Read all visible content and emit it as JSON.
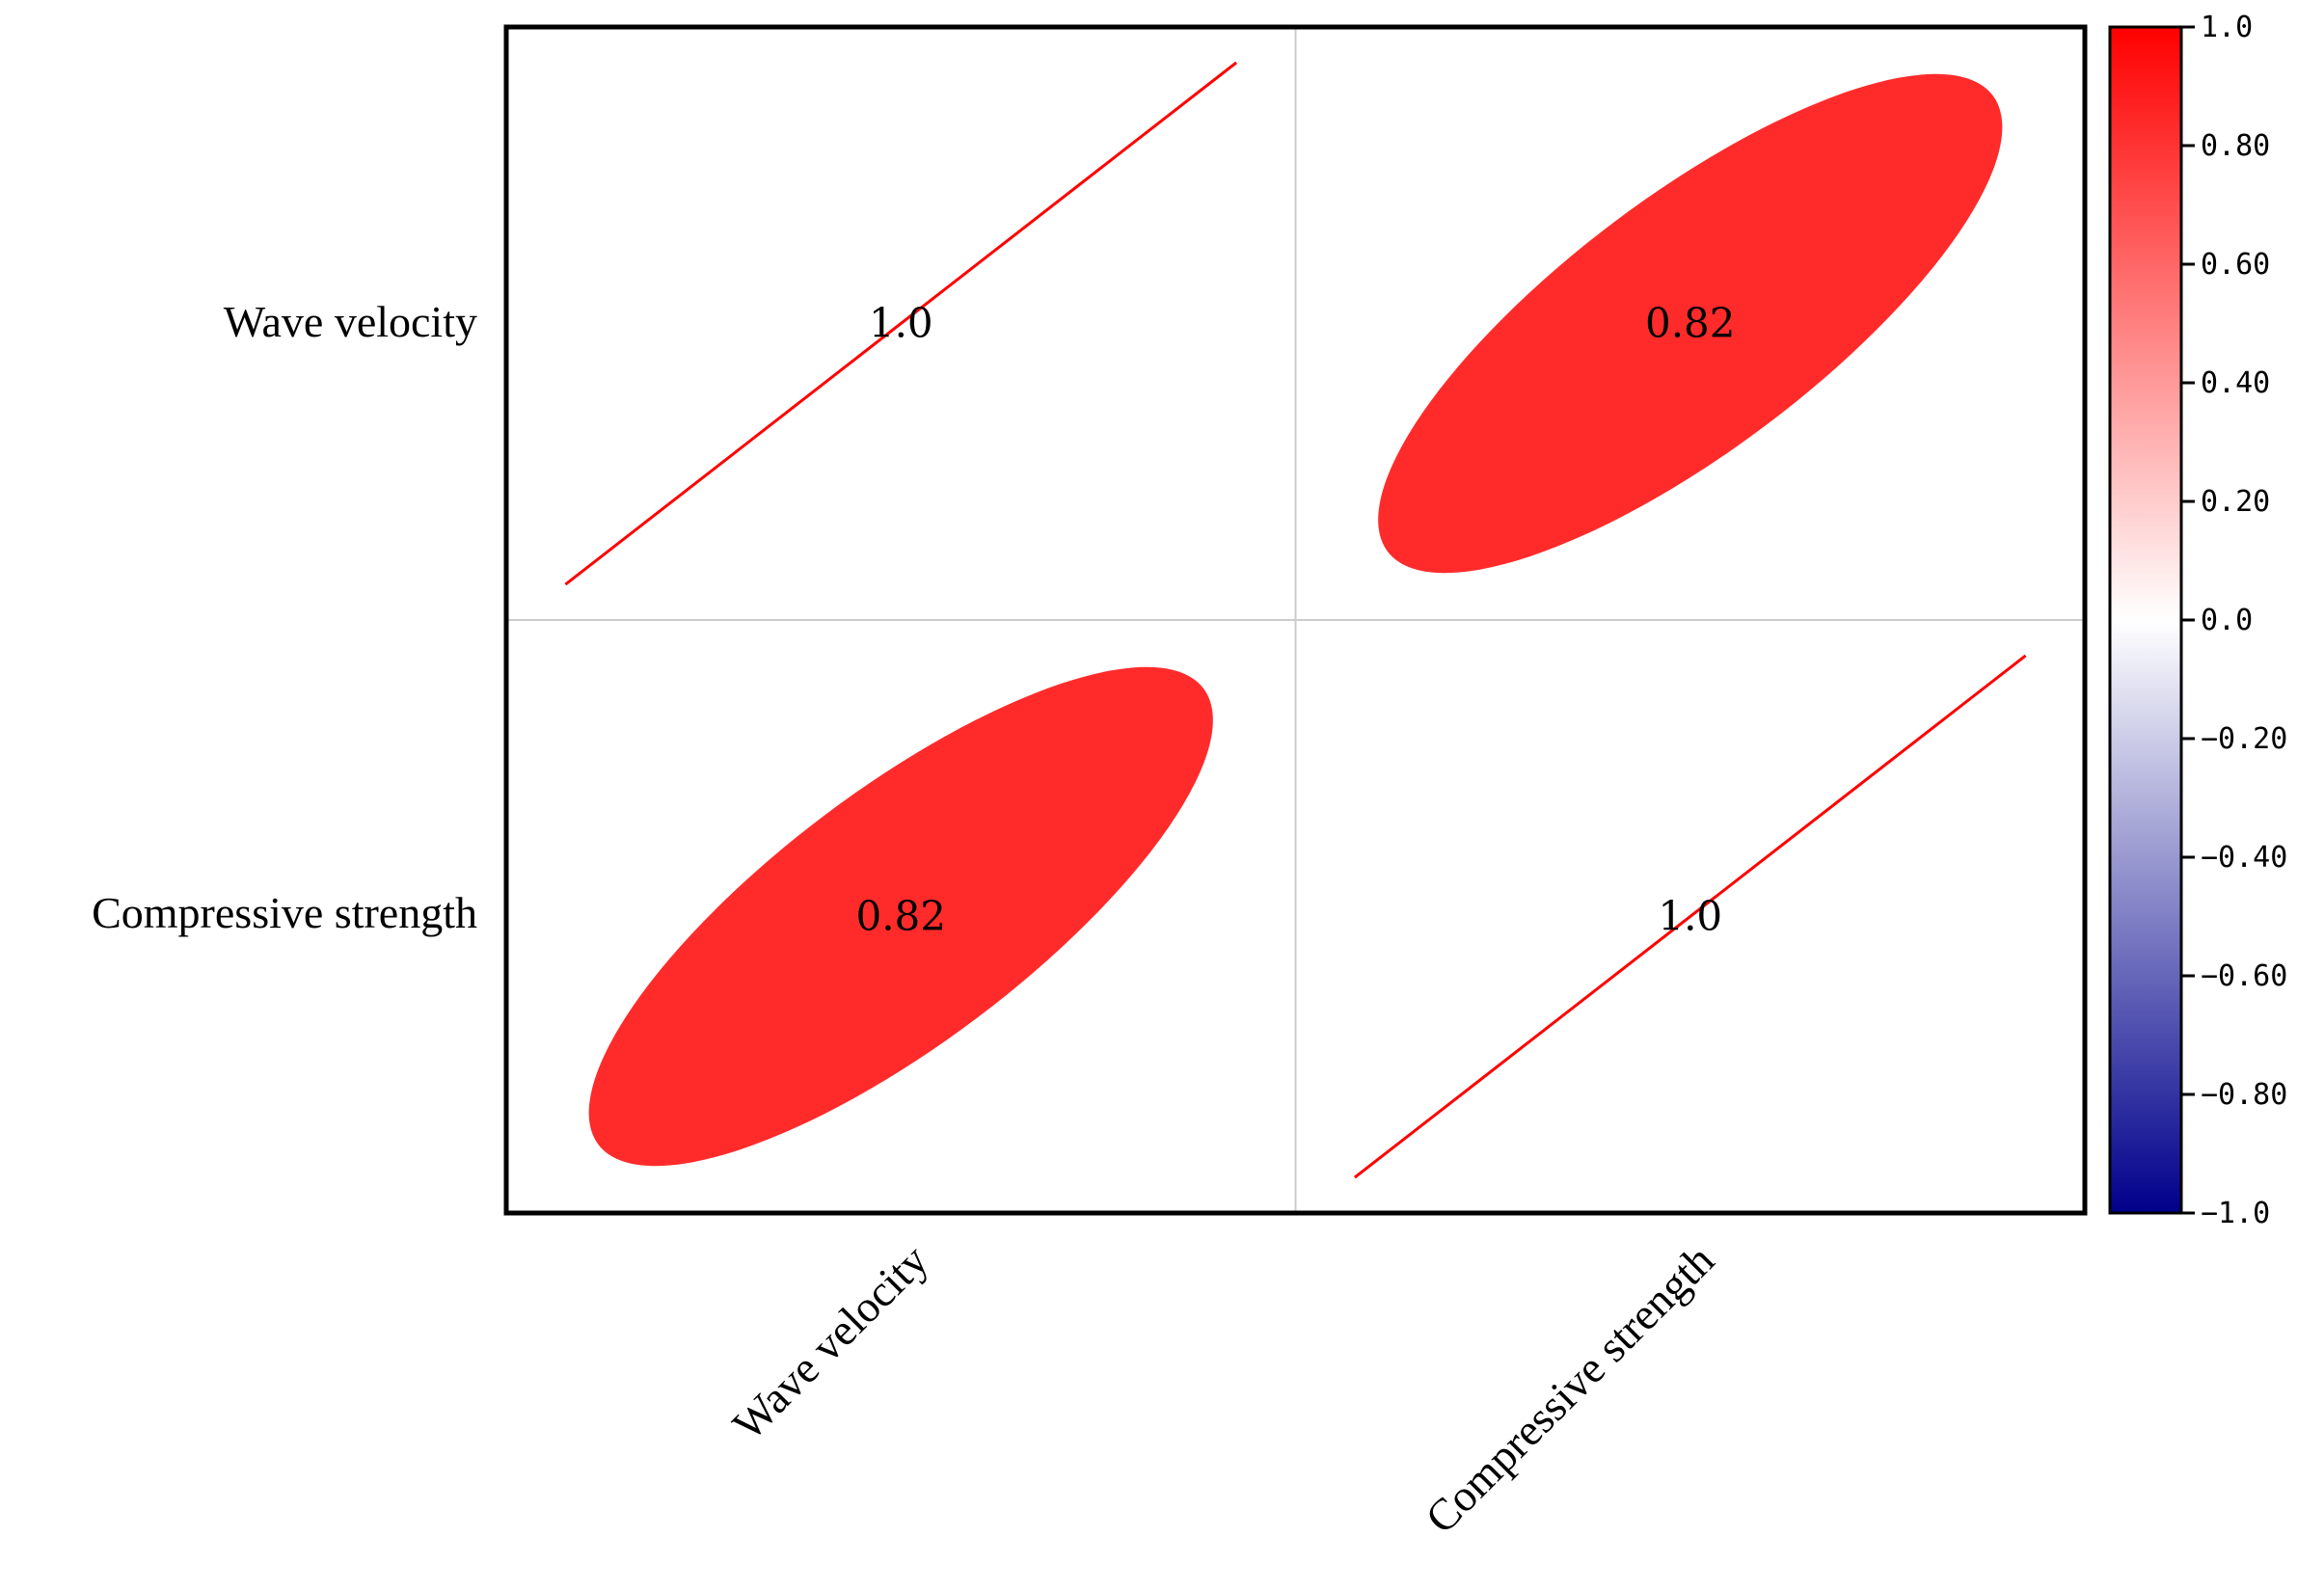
{
  "chart_data": {
    "type": "heatmap",
    "style": "correlation-ellipse",
    "variables": [
      "Wave velocity",
      "Compressive strength"
    ],
    "row_labels": [
      "Wave velocity",
      "Compressive strength"
    ],
    "col_labels": [
      "Wave velocity",
      "Compressive strength"
    ],
    "matrix": [
      [
        1.0,
        0.82
      ],
      [
        0.82,
        1.0
      ]
    ],
    "cell_labels": [
      [
        "1.0",
        "0.82"
      ],
      [
        "0.82",
        "1.0"
      ]
    ],
    "colorbar": {
      "range": [
        -1.0,
        1.0
      ],
      "ticks": [
        1.0,
        0.8,
        0.6,
        0.4,
        0.2,
        0.0,
        -0.2,
        -0.4,
        -0.6,
        -0.8,
        -1.0
      ],
      "tick_labels": [
        "1.0",
        "0.80",
        "0.60",
        "0.40",
        "0.20",
        "0.0",
        "−0.20",
        "−0.40",
        "−0.60",
        "−0.80",
        "−1.0"
      ],
      "colors": {
        "max": "#ff0000",
        "mid": "#ffffff",
        "min": "#00008b"
      },
      "position": "right"
    },
    "grid": true,
    "colors": {
      "positive_strong": "#ff2b2b",
      "line": "#ff0000"
    }
  }
}
